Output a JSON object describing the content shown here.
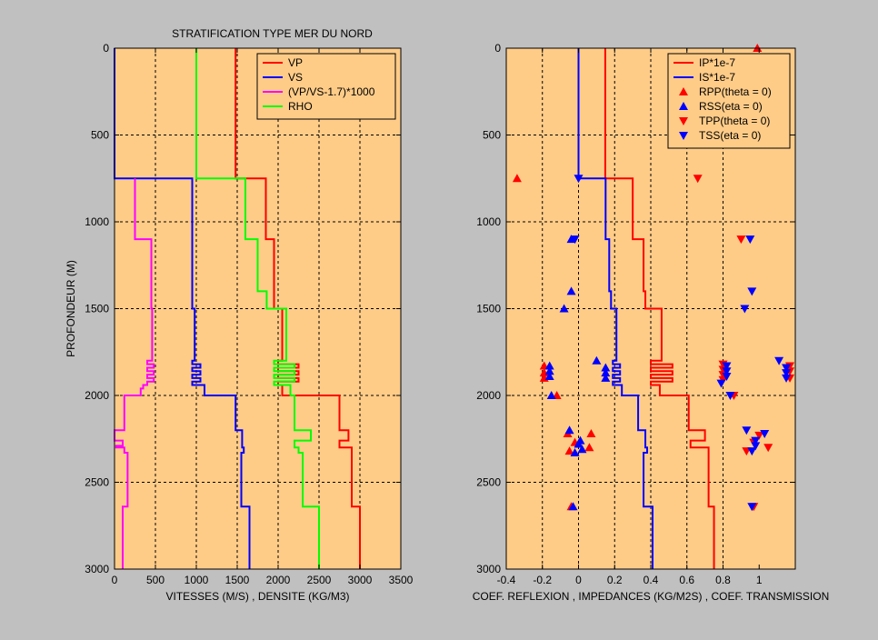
{
  "colors": {
    "background": "#c0c0c0",
    "axes_bg": "#ffcc88",
    "vp": "#ff0000",
    "vs": "#0000ff",
    "ratio": "#ff00ff",
    "rho": "#00ff00"
  },
  "chart_data": [
    {
      "type": "line",
      "title": "STRATIFICATION TYPE MER DU NORD",
      "xlabel": "VITESSES (M/S) , DENSITE (KG/M3)",
      "ylabel": "PROFONDEUR (M)",
      "xlim": [
        0,
        3500
      ],
      "ylim": [
        0,
        3000
      ],
      "y_reversed": true,
      "grid": true,
      "xticks": [
        0,
        500,
        1000,
        1500,
        2000,
        2500,
        3000,
        3500
      ],
      "yticks": [
        0,
        500,
        1000,
        1500,
        2000,
        2500,
        3000
      ],
      "legend_position": "top-right",
      "legend": [
        "VP",
        "VS",
        "(VP/VS-1.7)*1000",
        "RHO"
      ],
      "series": [
        {
          "name": "VP",
          "color": "#ff0000",
          "steps": [
            [
              0,
              1480
            ],
            [
              750,
              1850
            ],
            [
              1100,
              1950
            ],
            [
              1500,
              2050
            ],
            [
              1800,
              2000
            ],
            [
              1820,
              2250
            ],
            [
              1840,
              2000
            ],
            [
              1860,
              2250
            ],
            [
              1880,
              2000
            ],
            [
              1900,
              2250
            ],
            [
              1920,
              2000
            ],
            [
              1940,
              2050
            ],
            [
              2000,
              2750
            ],
            [
              2200,
              2860
            ],
            [
              2260,
              2750
            ],
            [
              2300,
              2900
            ],
            [
              2640,
              3000
            ],
            [
              3000,
              3000
            ]
          ]
        },
        {
          "name": "VS",
          "color": "#0000ff",
          "steps": [
            [
              0,
              0
            ],
            [
              750,
              950
            ],
            [
              1500,
              980
            ],
            [
              1800,
              950
            ],
            [
              1820,
              1050
            ],
            [
              1840,
              950
            ],
            [
              1860,
              1050
            ],
            [
              1880,
              950
            ],
            [
              1900,
              1050
            ],
            [
              1920,
              950
            ],
            [
              1940,
              1100
            ],
            [
              2000,
              1480
            ],
            [
              2200,
              1560
            ],
            [
              2300,
              1580
            ],
            [
              2330,
              1550
            ],
            [
              2640,
              1650
            ],
            [
              3000,
              1650
            ]
          ]
        },
        {
          "name": "(VP/VS-1.7)*1000",
          "color": "#ff00ff",
          "steps": [
            [
              750,
              250
            ],
            [
              1100,
              450
            ],
            [
              1500,
              460
            ],
            [
              1800,
              400
            ],
            [
              1820,
              480
            ],
            [
              1840,
              400
            ],
            [
              1860,
              480
            ],
            [
              1880,
              400
            ],
            [
              1900,
              480
            ],
            [
              1920,
              400
            ],
            [
              1940,
              350
            ],
            [
              1960,
              320
            ],
            [
              2000,
              120
            ],
            [
              2200,
              0
            ],
            [
              2260,
              100
            ],
            [
              2290,
              20
            ],
            [
              2300,
              120
            ],
            [
              2330,
              160
            ],
            [
              2640,
              100
            ],
            [
              3000,
              100
            ]
          ]
        },
        {
          "name": "RHO",
          "color": "#00ff00",
          "steps": [
            [
              0,
              1000
            ],
            [
              750,
              1600
            ],
            [
              1100,
              1750
            ],
            [
              1400,
              1860
            ],
            [
              1500,
              2100
            ],
            [
              1800,
              1950
            ],
            [
              1820,
              2200
            ],
            [
              1840,
              1950
            ],
            [
              1860,
              2200
            ],
            [
              1880,
              1950
            ],
            [
              1900,
              2200
            ],
            [
              1920,
              1950
            ],
            [
              1940,
              2150
            ],
            [
              2000,
              2200
            ],
            [
              2200,
              2400
            ],
            [
              2260,
              2200
            ],
            [
              2300,
              2250
            ],
            [
              2330,
              2300
            ],
            [
              2640,
              2500
            ],
            [
              3000,
              2500
            ]
          ]
        }
      ]
    },
    {
      "type": "line",
      "title": "",
      "xlabel": "COEF. REFLEXION , IMPEDANCES (KG/M2S) , COEF. TRANSMISSION",
      "ylabel": "",
      "xlim": [
        -0.4,
        1.2
      ],
      "ylim": [
        0,
        3000
      ],
      "y_reversed": true,
      "grid": true,
      "xticks": [
        -0.4,
        -0.2,
        0,
        0.2,
        0.4,
        0.6,
        0.8,
        1
      ],
      "xtick_labels": [
        "-0.4",
        "-0.2",
        "0",
        "0.2",
        "0.4",
        "0.6",
        "0.8",
        "1"
      ],
      "yticks": [
        0,
        500,
        1000,
        1500,
        2000,
        2500,
        3000
      ],
      "legend_position": "top-right",
      "legend": [
        "IP*1e-7",
        "IS*1e-7",
        "RPP(theta = 0)",
        "RSS(eta = 0)",
        "TPP(theta = 0)",
        "TSS(eta = 0)"
      ],
      "series": [
        {
          "name": "IP*1e-7",
          "color": "#ff0000",
          "steps": [
            [
              0,
              0.148
            ],
            [
              750,
              0.3
            ],
            [
              1100,
              0.36
            ],
            [
              1400,
              0.37
            ],
            [
              1500,
              0.46
            ],
            [
              1800,
              0.4
            ],
            [
              1820,
              0.52
            ],
            [
              1840,
              0.4
            ],
            [
              1860,
              0.52
            ],
            [
              1880,
              0.4
            ],
            [
              1900,
              0.52
            ],
            [
              1920,
              0.4
            ],
            [
              1940,
              0.45
            ],
            [
              2000,
              0.61
            ],
            [
              2200,
              0.7
            ],
            [
              2260,
              0.62
            ],
            [
              2300,
              0.72
            ],
            [
              2640,
              0.75
            ],
            [
              3000,
              0.75
            ]
          ]
        },
        {
          "name": "IS*1e-7",
          "color": "#0000ff",
          "steps": [
            [
              0,
              0
            ],
            [
              750,
              0.15
            ],
            [
              1100,
              0.17
            ],
            [
              1400,
              0.18
            ],
            [
              1500,
              0.21
            ],
            [
              1800,
              0.19
            ],
            [
              1820,
              0.23
            ],
            [
              1840,
              0.19
            ],
            [
              1860,
              0.23
            ],
            [
              1880,
              0.19
            ],
            [
              1900,
              0.23
            ],
            [
              1920,
              0.19
            ],
            [
              1940,
              0.24
            ],
            [
              2000,
              0.33
            ],
            [
              2200,
              0.37
            ],
            [
              2300,
              0.38
            ],
            [
              2330,
              0.36
            ],
            [
              2640,
              0.41
            ],
            [
              3000,
              0.41
            ]
          ]
        }
      ],
      "markers": {
        "RPP(theta = 0)": {
          "color": "#ff0000",
          "shape": "triangle-up",
          "points": [
            [
              0.99,
              0
            ],
            [
              -0.34,
              750
            ],
            [
              -0.06,
              2220
            ],
            [
              -0.02,
              2270
            ],
            [
              0.07,
              2220
            ],
            [
              0.06,
              2300
            ],
            [
              -0.05,
              2320
            ],
            [
              -0.04,
              2640
            ],
            [
              -0.12,
              2000
            ],
            [
              -0.19,
              1830
            ],
            [
              -0.19,
              1870
            ],
            [
              -0.19,
              1900
            ]
          ]
        },
        "RSS(eta = 0)": {
          "color": "#0000ff",
          "shape": "triangle-up",
          "points": [
            [
              -0.04,
              1100
            ],
            [
              -0.04,
              1400
            ],
            [
              -0.08,
              1500
            ],
            [
              -0.15,
              2000
            ],
            [
              0.1,
              1800
            ],
            [
              0.15,
              1840
            ],
            [
              0.15,
              1870
            ],
            [
              0.15,
              1900
            ],
            [
              -0.16,
              1830
            ],
            [
              -0.16,
              1860
            ],
            [
              -0.16,
              1890
            ],
            [
              -0.05,
              2200
            ],
            [
              0.01,
              2260
            ],
            [
              0.0,
              2280
            ],
            [
              0.02,
              2310
            ],
            [
              -0.02,
              2330
            ],
            [
              -0.03,
              2640
            ]
          ]
        },
        "TPP(theta = 0)": {
          "color": "#ff0000",
          "shape": "triangle-down",
          "points": [
            [
              0.66,
              750
            ],
            [
              0.9,
              1100
            ],
            [
              0.8,
              1820
            ],
            [
              0.8,
              1850
            ],
            [
              0.8,
              1880
            ],
            [
              0.8,
              1910
            ],
            [
              0.86,
              2000
            ],
            [
              0.97,
              2270
            ],
            [
              1.0,
              2230
            ],
            [
              1.05,
              2300
            ],
            [
              0.93,
              2320
            ],
            [
              0.97,
              2640
            ],
            [
              1.17,
              1830
            ],
            [
              1.17,
              1860
            ],
            [
              1.17,
              1900
            ]
          ]
        },
        "TSS(eta = 0)": {
          "color": "#0000ff",
          "shape": "triangle-down",
          "points": [
            [
              0.0,
              750
            ],
            [
              -0.02,
              1100
            ],
            [
              0.95,
              1100
            ],
            [
              0.96,
              1400
            ],
            [
              0.92,
              1500
            ],
            [
              0.82,
              1830
            ],
            [
              0.82,
              1860
            ],
            [
              0.82,
              1890
            ],
            [
              0.79,
              1930
            ],
            [
              0.84,
              2000
            ],
            [
              1.11,
              1800
            ],
            [
              1.15,
              1840
            ],
            [
              1.15,
              1870
            ],
            [
              1.15,
              1900
            ],
            [
              0.93,
              2200
            ],
            [
              1.03,
              2220
            ],
            [
              0.98,
              2260
            ],
            [
              0.98,
              2290
            ],
            [
              0.96,
              2320
            ],
            [
              0.96,
              2640
            ]
          ]
        }
      }
    }
  ]
}
